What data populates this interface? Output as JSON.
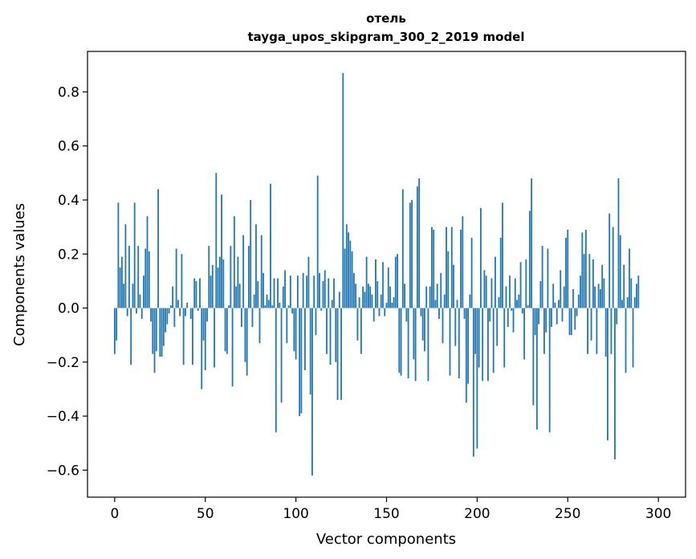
{
  "chart_data": {
    "type": "bar",
    "title_line1": "отель",
    "title_line2": "tayga_upos_skipgram_300_2_2019 model",
    "xlabel": "Vector components",
    "ylabel": "Components values",
    "xlim": [
      -15,
      315
    ],
    "ylim": [
      -0.7,
      0.95
    ],
    "xticks": [
      0,
      50,
      100,
      150,
      200,
      250,
      300
    ],
    "xtick_labels": [
      "0",
      "50",
      "100",
      "150",
      "200",
      "250",
      "300"
    ],
    "yticks": [
      -0.6,
      -0.4,
      -0.2,
      0.0,
      0.2,
      0.4,
      0.6,
      0.8
    ],
    "ytick_labels": [
      "−0.6",
      "−0.4",
      "−0.2",
      "0.0",
      "0.2",
      "0.4",
      "0.6",
      "0.8"
    ],
    "bar_color": "#1f77b4",
    "values": [
      -0.17,
      -0.12,
      0.39,
      0.15,
      0.19,
      0.09,
      0.31,
      -0.03,
      0.23,
      -0.21,
      0.09,
      0.39,
      -0.02,
      0.23,
      0.05,
      -0.04,
      0.12,
      0.22,
      0.34,
      0.21,
      -0.05,
      -0.17,
      -0.24,
      -0.16,
      0.44,
      -0.18,
      -0.18,
      -0.14,
      -0.09,
      -0.06,
      -0.02,
      0.01,
      0.08,
      -0.07,
      0.22,
      0.03,
      -0.03,
      0.2,
      -0.21,
      -0.03,
      0.02,
      0.0,
      -0.04,
      -0.21,
      0.11,
      0.1,
      -0.01,
      0.11,
      -0.3,
      -0.12,
      -0.23,
      -0.05,
      0.23,
      0.12,
      0.16,
      -0.22,
      0.5,
      0.15,
      0.19,
      0.42,
      0.18,
      -0.16,
      -0.17,
      0.01,
      0.23,
      -0.29,
      0.34,
      0.08,
      0.19,
      0.09,
      -0.07,
      0.27,
      -0.2,
      -0.25,
      0.23,
      0.4,
      -0.07,
      0.05,
      0.31,
      0.1,
      -0.13,
      0.27,
      0.13,
      0.01,
      0.05,
      0.03,
      0.46,
      0.01,
      0.11,
      -0.46,
      0.11,
      0.02,
      -0.35,
      0.08,
      0.14,
      -0.13,
      0.01,
      0.12,
      -0.02,
      -0.16,
      -0.19,
      0.12,
      -0.4,
      -0.39,
      0.13,
      -0.23,
      0.12,
      0.19,
      -0.32,
      -0.62,
      0.12,
      -0.1,
      0.49,
      0.13,
      -0.01,
      0.1,
      0.14,
      -0.17,
      0.11,
      -0.21,
      0.03,
      0.11,
      -0.2,
      -0.34,
      0.06,
      -0.34,
      0.87,
      0.22,
      0.31,
      0.28,
      0.25,
      0.21,
      0.13,
      0.09,
      -0.12,
      0.04,
      -0.17,
      0.08,
      0.06,
      0.19,
      0.09,
      0.08,
      0.05,
      -0.05,
      0.18,
      0.1,
      -0.03,
      0.05,
      0.17,
      -0.03,
      0.02,
      0.15,
      0.08,
      0.02,
      0.04,
      0.19,
      0.2,
      -0.24,
      -0.25,
      0.44,
      0.09,
      -0.05,
      -0.26,
      0.39,
      0.4,
      -0.19,
      -0.27,
      0.45,
      0.48,
      -0.03,
      -0.12,
      -0.16,
      0.08,
      -0.27,
      0.08,
      0.3,
      0.29,
      0.03,
      0.09,
      -0.04,
      0.13,
      -0.13,
      0.05,
      0.3,
      0.21,
      -0.25,
      0.3,
      0.16,
      -0.14,
      0.03,
      -0.26,
      0.29,
      0.34,
      -0.04,
      -0.35,
      -0.28,
      0.05,
      0.26,
      -0.55,
      -0.17,
      -0.52,
      -0.22,
      0.37,
      -0.27,
      0.14,
      0.12,
      -0.27,
      -0.05,
      0.11,
      -0.24,
      0.19,
      -0.14,
      0.04,
      0.26,
      0.39,
      -0.22,
      0.08,
      -0.07,
      0.12,
      -0.01,
      -0.09,
      0.11,
      0.03,
      0.05,
      0.17,
      -0.02,
      -0.19,
      0.18,
      0.01,
      0.36,
      0.48,
      -0.36,
      -0.1,
      -0.45,
      -0.06,
      0.1,
      0.23,
      -0.17,
      -0.09,
      0.22,
      -0.46,
      -0.07,
      0.09,
      0.02,
      -0.06,
      0.03,
      0.14,
      -0.05,
      0.08,
      0.26,
      0.29,
      -0.1,
      -0.1,
      0.07,
      -0.08,
      -0.03,
      0.05,
      0.12,
      0.28,
      0.2,
      0.29,
      -0.17,
      0.2,
      -0.12,
      0.18,
      0.08,
      -0.17,
      0.09,
      0.07,
      0.16,
      0.11,
      -0.18,
      -0.49,
      0.35,
      -0.17,
      0.3,
      -0.56,
      -0.06,
      0.48,
      0.27,
      0.03,
      0.16,
      -0.24,
      0.04,
      0.22,
      0.11,
      -0.22,
      0.04,
      0.09,
      0.12
    ]
  }
}
